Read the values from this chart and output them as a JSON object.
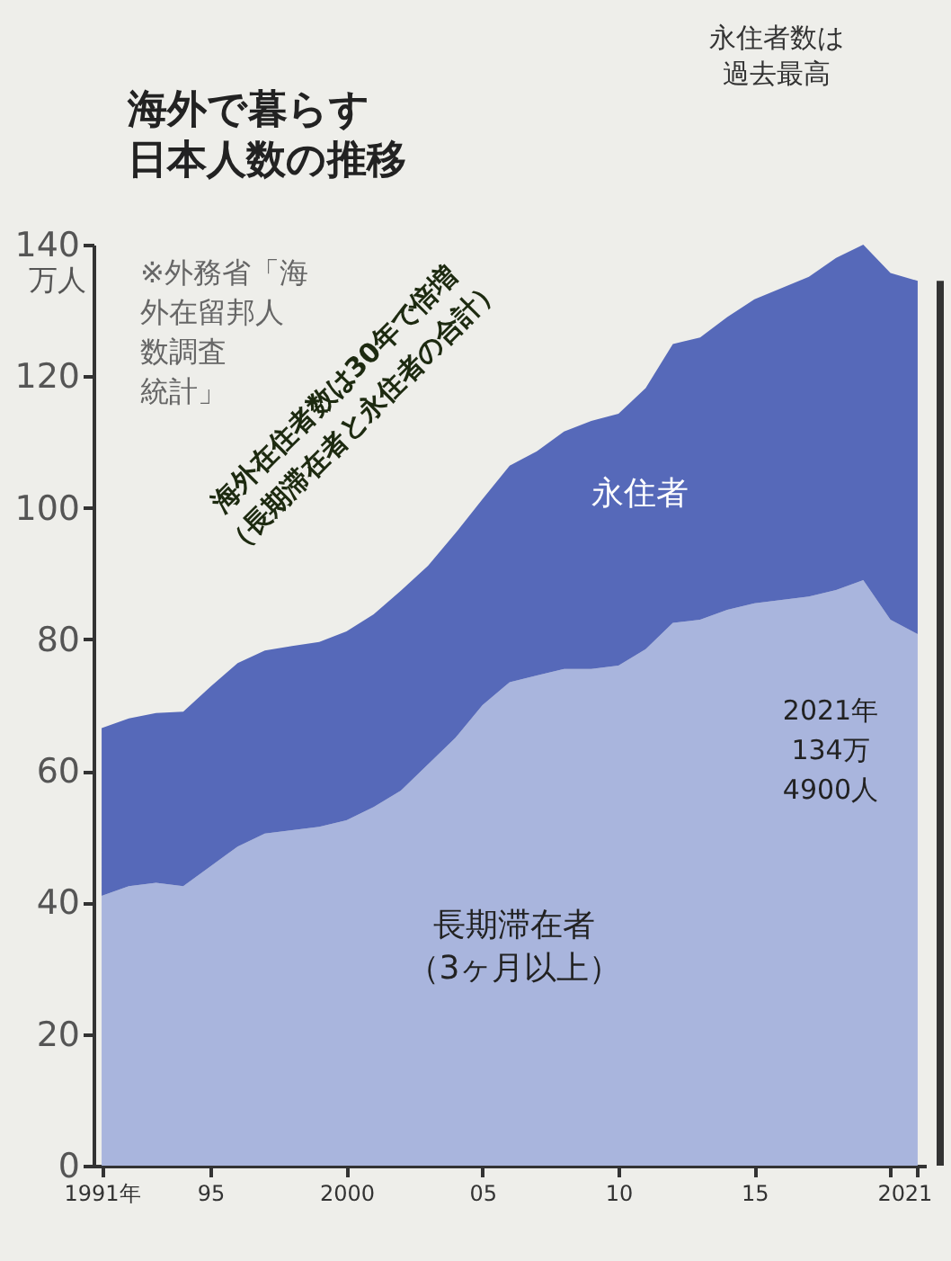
{
  "chart_data": {
    "type": "area",
    "stacked": true,
    "title": "海外で暮らす日本人数の推移",
    "ylabel": "万人",
    "x": [
      1991,
      1992,
      1993,
      1994,
      1995,
      1996,
      1997,
      1998,
      1999,
      2000,
      2001,
      2002,
      2003,
      2004,
      2005,
      2006,
      2007,
      2008,
      2009,
      2010,
      2011,
      2012,
      2013,
      2014,
      2015,
      2016,
      2017,
      2018,
      2019,
      2020,
      2021
    ],
    "series": [
      {
        "name": "長期滞在者（3ヶ月以上）",
        "color": "#a9b5dd",
        "values": [
          41.0,
          42.5,
          43.0,
          42.5,
          45.5,
          48.5,
          50.5,
          51.0,
          51.5,
          52.5,
          54.5,
          57.0,
          61.0,
          65.0,
          70.0,
          73.5,
          74.5,
          75.5,
          75.5,
          76.0,
          78.5,
          82.5,
          83.0,
          84.5,
          85.5,
          86.0,
          86.5,
          87.5,
          89.0,
          83.0,
          80.8
        ]
      },
      {
        "name": "永住者",
        "color": "#5669b9",
        "values": [
          25.5,
          25.5,
          25.8,
          26.5,
          27.3,
          27.9,
          27.8,
          28.0,
          28.1,
          28.7,
          29.3,
          30.4,
          30.2,
          31.1,
          31.3,
          32.9,
          34.1,
          36.1,
          37.7,
          38.3,
          39.7,
          42.4,
          42.9,
          44.5,
          46.2,
          47.4,
          48.6,
          50.5,
          51.0,
          52.7,
          53.7
        ]
      }
    ],
    "xlim": [
      1990.7,
      2021.3
    ],
    "xticks": [
      {
        "value": 1991,
        "label": "1991年"
      },
      {
        "value": 1995,
        "label": "95"
      },
      {
        "value": 2000,
        "label": "2000"
      },
      {
        "value": 2005,
        "label": "05"
      },
      {
        "value": 2010,
        "label": "10"
      },
      {
        "value": 2015,
        "label": "15"
      },
      {
        "value": 2020,
        "label": "20"
      },
      {
        "value": 2021,
        "label": "21"
      }
    ],
    "ylim": [
      0,
      140
    ],
    "yticks": [
      0,
      20,
      40,
      60,
      80,
      100,
      120,
      140
    ],
    "grid": false,
    "legend": false,
    "annotations": [
      "※外務省「海外在留邦人数調査統計」",
      "海外在住者数は30年で倍増（長期滞在者と永住者の合計）",
      "永住者数は過去最高",
      "2021年134万4900人"
    ]
  }
}
